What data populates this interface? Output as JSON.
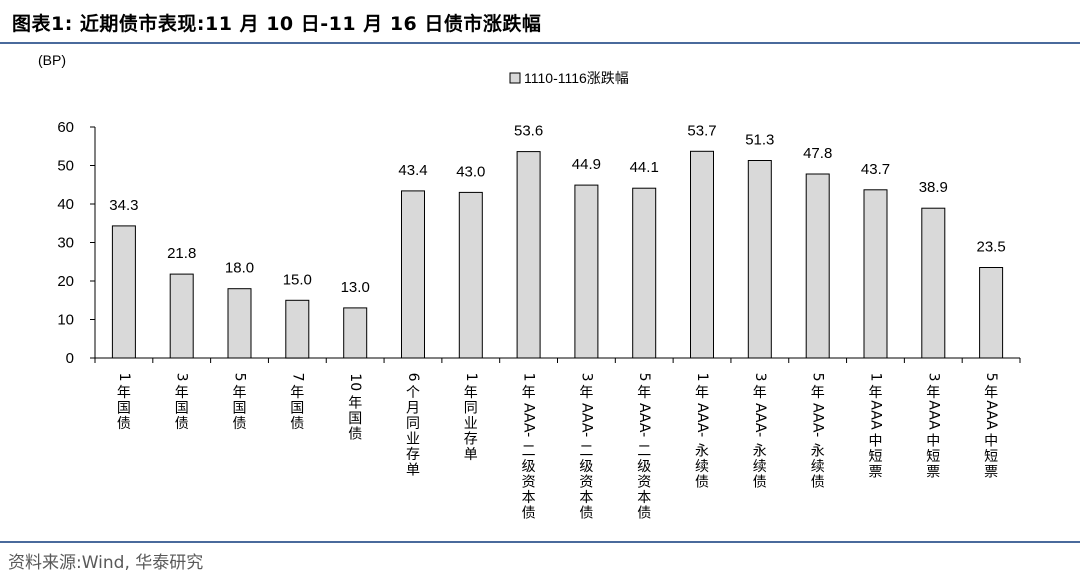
{
  "header": {
    "title": "图表1:  近期债市表现:11 月 10 日-11 月 16 日债市涨跌幅"
  },
  "footer": {
    "source": "资料来源:Wind, 华泰研究"
  },
  "colors": {
    "bar_fill": "#d9d9d9",
    "bar_stroke": "#000000",
    "rule": "#4a6a9c"
  },
  "chart_data": {
    "type": "bar",
    "unit": "(BP)",
    "categories": [
      "1年国债",
      "3年国债",
      "5年国债",
      "7年国债",
      "10年国债",
      "6个月同业存单",
      "1年同业存单",
      "1年AAA-二级资本债",
      "3年AAA-二级资本债",
      "5年AAA-二级资本债",
      "1年AAA-永续债",
      "3年AAA-永续债",
      "5年AAA-永续债",
      "1年AAA中短票",
      "3年AAA中短票",
      "5年AAA中短票"
    ],
    "series": [
      {
        "name": "1110-1116涨跌幅",
        "values": [
          34.3,
          21.8,
          18.0,
          15.0,
          13.0,
          43.4,
          43.0,
          53.6,
          44.9,
          44.1,
          53.7,
          51.3,
          47.8,
          43.7,
          38.9,
          23.5
        ],
        "labels": [
          "34.3",
          "21.8",
          "18.0",
          "15.0",
          "13.0",
          "43.4",
          "43.0",
          "53.6",
          "44.9",
          "44.1",
          "53.7",
          "51.3",
          "47.8",
          "43.7",
          "38.9",
          "23.5"
        ]
      }
    ],
    "ylim": [
      0,
      60
    ],
    "yticks": [
      0,
      10,
      20,
      30,
      40,
      50,
      60
    ],
    "legend": "top-center",
    "grid": false
  }
}
